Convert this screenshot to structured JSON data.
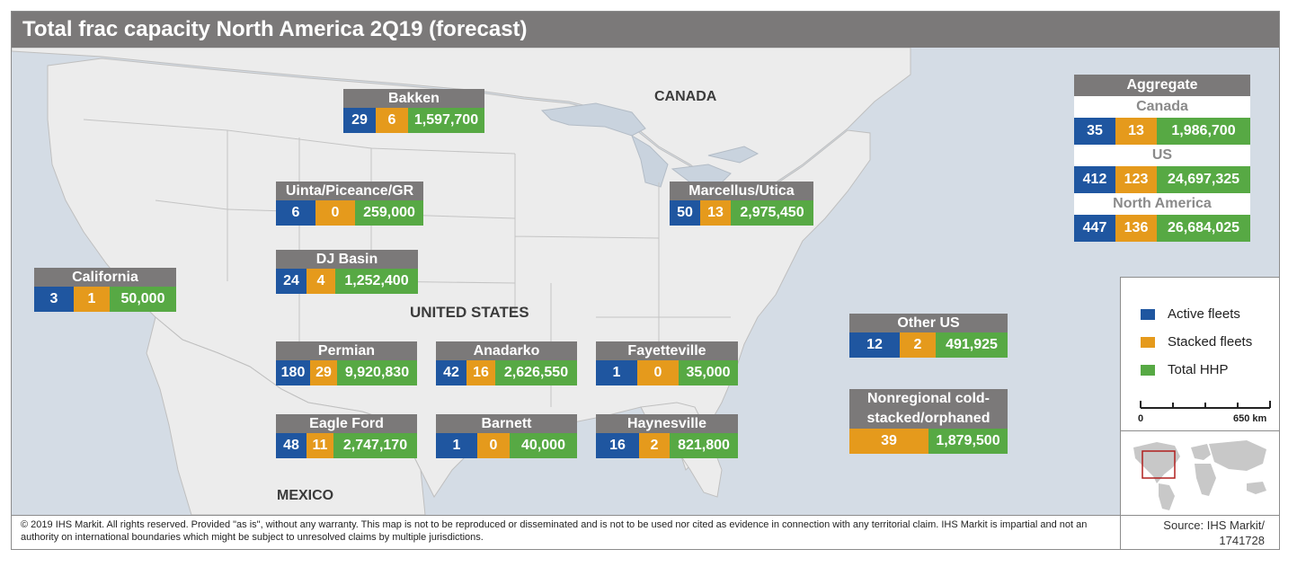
{
  "title": "Total frac capacity North America 2Q19 (forecast)",
  "map_labels": {
    "canada": "CANADA",
    "united_states": "UNITED STATES",
    "mexico": "MEXICO"
  },
  "basins": [
    {
      "name": "Bakken",
      "active": "29",
      "stacked": "6",
      "hhp": "1,597,700"
    },
    {
      "name": "Uinta/Piceance/GR",
      "active": "6",
      "stacked": "0",
      "hhp": "259,000"
    },
    {
      "name": "Marcellus/Utica",
      "active": "50",
      "stacked": "13",
      "hhp": "2,975,450"
    },
    {
      "name": "DJ Basin",
      "active": "24",
      "stacked": "4",
      "hhp": "1,252,400"
    },
    {
      "name": "California",
      "active": "3",
      "stacked": "1",
      "hhp": "50,000"
    },
    {
      "name": "Permian",
      "active": "180",
      "stacked": "29",
      "hhp": "9,920,830"
    },
    {
      "name": "Anadarko",
      "active": "42",
      "stacked": "16",
      "hhp": "2,626,550"
    },
    {
      "name": "Fayetteville",
      "active": "1",
      "stacked": "0",
      "hhp": "35,000"
    },
    {
      "name": "Eagle Ford",
      "active": "48",
      "stacked": "11",
      "hhp": "2,747,170"
    },
    {
      "name": "Barnett",
      "active": "1",
      "stacked": "0",
      "hhp": "40,000"
    },
    {
      "name": "Haynesville",
      "active": "16",
      "stacked": "2",
      "hhp": "821,800"
    },
    {
      "name": "Other US",
      "active": "12",
      "stacked": "2",
      "hhp": "491,925"
    }
  ],
  "nonregional": {
    "name": "Nonregional cold-stacked/orphaned",
    "stacked": "39",
    "hhp": "1,879,500"
  },
  "aggregate": {
    "title": "Aggregate",
    "groups": [
      {
        "name": "Canada",
        "active": "35",
        "stacked": "13",
        "hhp": "1,986,700"
      },
      {
        "name": "US",
        "active": "412",
        "stacked": "123",
        "hhp": "24,697,325"
      },
      {
        "name": "North America",
        "active": "447",
        "stacked": "136",
        "hhp": "26,684,025"
      }
    ]
  },
  "legend": {
    "items": [
      {
        "label": "Active fleets",
        "color": "#1f56a0"
      },
      {
        "label": "Stacked fleets",
        "color": "#e59a1c"
      },
      {
        "label": "Total HHP",
        "color": "#57a944"
      }
    ],
    "scale_zero": "0",
    "scale_max": "650 km"
  },
  "footer": "© 2019 IHS Markit. All rights reserved. Provided \"as is\", without any warranty. This map is not to be reproduced or disseminated and is not to be used nor cited as evidence in connection with any territorial claim. IHS Markit is impartial and not an authority on international boundaries which might be subject to unresolved claims by multiple jurisdictions.",
  "source": {
    "line1": "Source: IHS Markit/",
    "line2": "1741728"
  }
}
